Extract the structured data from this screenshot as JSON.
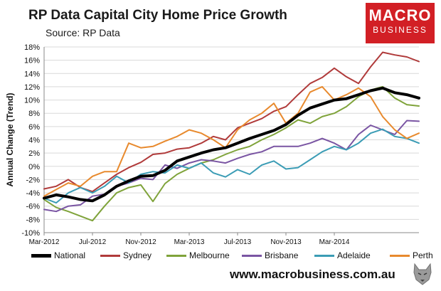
{
  "header": {
    "title": "RP Data Capital City Home Price Growth",
    "subtitle": "Source: RP Data"
  },
  "logo": {
    "line1": "MACRO",
    "line2": "BUSINESS"
  },
  "footer": {
    "url": "www.macrobusiness.com.au"
  },
  "colors": {
    "national": "#000000",
    "sydney": "#b03a3a",
    "melbourne": "#7fa33a",
    "brisbane": "#7a55a3",
    "adelaide": "#3b9cb5",
    "perth": "#e88a2e",
    "logo_bg": "#d21f25"
  },
  "chart_data": {
    "type": "line",
    "title": "RP Data Capital City Home Price Growth",
    "xlabel": "",
    "ylabel": "Annual Change (Trend)",
    "ylim": [
      -10,
      18
    ],
    "yticks": [
      -10,
      -8,
      -6,
      -4,
      -2,
      0,
      2,
      4,
      6,
      8,
      10,
      12,
      14,
      16,
      18
    ],
    "ytick_labels": [
      "-10%",
      "-8%",
      "-6%",
      "-4%",
      "-2%",
      "0%",
      "2%",
      "4%",
      "6%",
      "8%",
      "10%",
      "12%",
      "14%",
      "16%",
      "18%"
    ],
    "xlim": [
      0,
      31
    ],
    "xticks": [
      0,
      4,
      8,
      12,
      16,
      20,
      24
    ],
    "xtick_labels": [
      "Mar-2012",
      "Jul-2012",
      "Nov-2012",
      "Mar-2013",
      "Jul-2013",
      "Nov-2013",
      "Mar-2014"
    ],
    "grid": "horizontal",
    "legend_position": "bottom",
    "series": [
      {
        "name": "National",
        "key": "national",
        "x": [
          0,
          1,
          2,
          3,
          4,
          5,
          6,
          7,
          8,
          9,
          10,
          11,
          12,
          13,
          14,
          15,
          16,
          17,
          18,
          19,
          20,
          21,
          22,
          23,
          24,
          25,
          26,
          27,
          28,
          29,
          30,
          31
        ],
        "values": [
          -4.8,
          -4.3,
          -4.6,
          -5.0,
          -5.2,
          -4.3,
          -3.0,
          -2.2,
          -1.5,
          -1.4,
          -0.6,
          0.8,
          1.4,
          2.0,
          2.5,
          2.8,
          3.5,
          4.2,
          4.8,
          5.4,
          6.3,
          7.7,
          8.8,
          9.4,
          10.0,
          10.2,
          10.8,
          11.4,
          11.8,
          11.1,
          10.8,
          10.3
        ],
        "width": 4
      },
      {
        "name": "Sydney",
        "key": "sydney",
        "x": [
          0,
          1,
          2,
          3,
          4,
          5,
          6,
          7,
          8,
          9,
          10,
          11,
          12,
          13,
          14,
          15,
          16,
          17,
          18,
          19,
          20,
          21,
          22,
          23,
          24,
          25,
          26,
          27,
          28,
          29,
          30,
          31
        ],
        "values": [
          -3.4,
          -3.0,
          -2.0,
          -3.2,
          -3.8,
          -2.5,
          -1.2,
          -0.2,
          0.6,
          1.8,
          2.0,
          2.6,
          2.8,
          3.5,
          4.5,
          4.0,
          5.8,
          6.5,
          7.2,
          8.3,
          9.0,
          10.8,
          12.5,
          13.4,
          14.8,
          13.5,
          12.5,
          15.0,
          17.2,
          16.8,
          16.5,
          15.8
        ],
        "width": 2
      },
      {
        "name": "Melbourne",
        "key": "melbourne",
        "x": [
          0,
          1,
          2,
          3,
          4,
          5,
          6,
          7,
          8,
          9,
          10,
          11,
          12,
          13,
          14,
          15,
          16,
          17,
          18,
          19,
          20,
          21,
          22,
          23,
          24,
          25,
          26,
          27,
          28,
          29,
          30,
          31
        ],
        "values": [
          -5.0,
          -6.2,
          -6.8,
          -7.5,
          -8.2,
          -6.0,
          -4.0,
          -3.2,
          -2.8,
          -5.3,
          -2.6,
          -1.2,
          -0.3,
          0.5,
          1.0,
          1.8,
          2.5,
          3.0,
          4.0,
          4.8,
          5.8,
          7.0,
          6.5,
          7.5,
          8.0,
          9.0,
          10.5,
          11.5,
          12.0,
          10.3,
          9.3,
          9.1
        ],
        "width": 2
      },
      {
        "name": "Brisbane",
        "key": "brisbane",
        "x": [
          0,
          1,
          2,
          3,
          4,
          5,
          6,
          7,
          8,
          9,
          10,
          11,
          12,
          13,
          14,
          15,
          16,
          17,
          18,
          19,
          20,
          21,
          22,
          23,
          24,
          25,
          26,
          27,
          28,
          29,
          30,
          31
        ],
        "values": [
          -6.5,
          -6.8,
          -6.0,
          -5.8,
          -4.5,
          -4.2,
          -3.0,
          -2.5,
          -1.8,
          -2.0,
          0.2,
          -0.3,
          0.5,
          1.0,
          0.8,
          0.5,
          1.2,
          1.8,
          2.2,
          3.0,
          3.0,
          3.0,
          3.5,
          4.2,
          3.5,
          2.5,
          4.8,
          6.2,
          5.5,
          4.8,
          6.9,
          6.8
        ],
        "width": 2
      },
      {
        "name": "Adelaide",
        "key": "adelaide",
        "x": [
          0,
          1,
          2,
          3,
          4,
          5,
          6,
          7,
          8,
          9,
          10,
          11,
          12,
          13,
          14,
          15,
          16,
          17,
          18,
          19,
          20,
          21,
          22,
          23,
          24,
          25,
          26,
          27,
          28,
          29,
          30,
          31
        ],
        "values": [
          -4.8,
          -5.5,
          -4.0,
          -3.2,
          -4.0,
          -3.0,
          -1.5,
          -2.5,
          -1.2,
          -0.8,
          -1.0,
          0.2,
          -0.3,
          0.5,
          -1.0,
          -1.6,
          -0.5,
          -1.2,
          0.2,
          0.8,
          -0.4,
          -0.2,
          1.0,
          2.2,
          3.0,
          2.5,
          3.5,
          5.0,
          5.6,
          4.5,
          4.2,
          3.5
        ],
        "width": 2
      },
      {
        "name": "Perth",
        "key": "perth",
        "x": [
          0,
          1,
          2,
          3,
          4,
          5,
          6,
          7,
          8,
          9,
          10,
          11,
          12,
          13,
          14,
          15,
          16,
          17,
          18,
          19,
          20,
          21,
          22,
          23,
          24,
          25,
          26,
          27,
          28,
          29,
          30,
          31
        ],
        "values": [
          -4.5,
          -3.5,
          -2.5,
          -3.0,
          -1.5,
          -0.8,
          -0.8,
          3.5,
          2.8,
          3.0,
          3.8,
          4.5,
          5.5,
          5.0,
          4.0,
          2.8,
          5.5,
          7.0,
          8.0,
          9.5,
          6.5,
          8.0,
          11.2,
          12.0,
          10.0,
          10.8,
          11.8,
          10.5,
          7.5,
          5.5,
          4.2,
          5.0
        ],
        "width": 2
      }
    ]
  }
}
